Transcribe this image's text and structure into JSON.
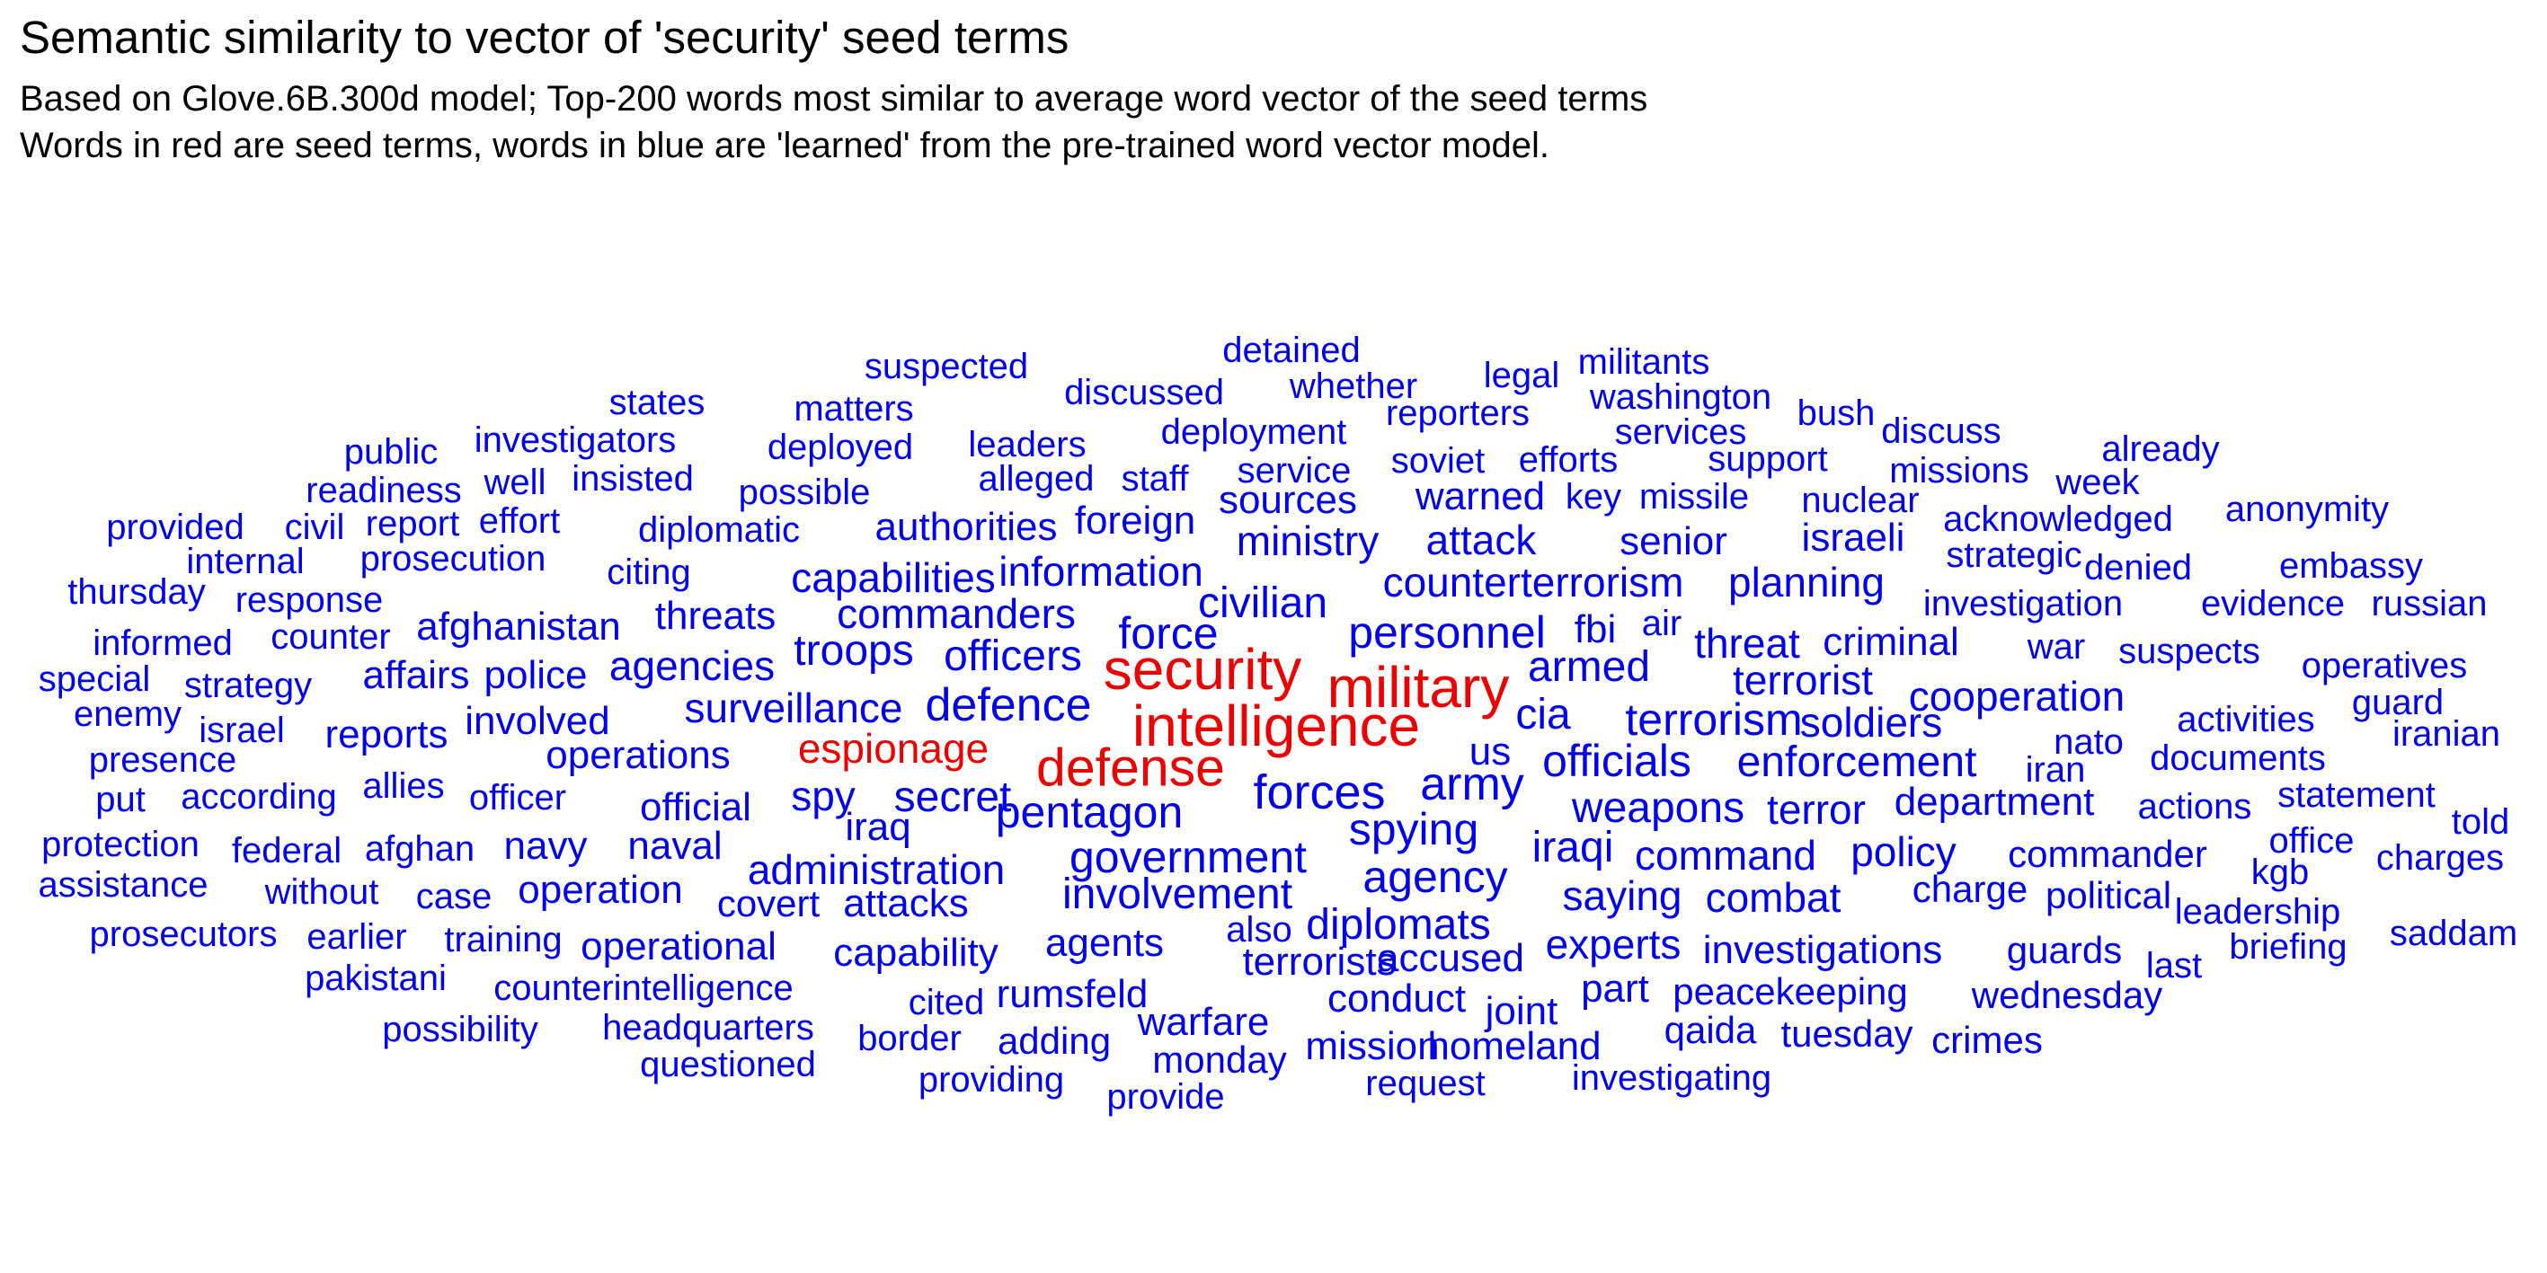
{
  "title": "Semantic similarity to vector of 'security' seed terms",
  "subtitle_lines": [
    "Based on Glove.6B.300d model; Top-200 words most similar to average word vector of the seed terms",
    "Words in red are seed terms, words in blue are 'learned' from the pre-trained word vector model."
  ],
  "colors": {
    "seed": "#ee0000",
    "learned": "#0000ee",
    "text": "#000000"
  },
  "words": [
    {
      "text": "security",
      "seed": true
    },
    {
      "text": "military",
      "seed": true
    },
    {
      "text": "intelligence",
      "seed": true
    },
    {
      "text": "defense",
      "seed": true
    },
    {
      "text": "espionage",
      "seed": true
    },
    {
      "text": "suspected"
    },
    {
      "text": "detained"
    },
    {
      "text": "legal"
    },
    {
      "text": "militants"
    },
    {
      "text": "states"
    },
    {
      "text": "matters"
    },
    {
      "text": "discussed"
    },
    {
      "text": "whether"
    },
    {
      "text": "reporters"
    },
    {
      "text": "washington"
    },
    {
      "text": "bush"
    },
    {
      "text": "public"
    },
    {
      "text": "investigators"
    },
    {
      "text": "deployed"
    },
    {
      "text": "leaders"
    },
    {
      "text": "deployment"
    },
    {
      "text": "services"
    },
    {
      "text": "discuss"
    },
    {
      "text": "readiness"
    },
    {
      "text": "well"
    },
    {
      "text": "insisted"
    },
    {
      "text": "possible"
    },
    {
      "text": "alleged"
    },
    {
      "text": "staff"
    },
    {
      "text": "service"
    },
    {
      "text": "soviet"
    },
    {
      "text": "efforts"
    },
    {
      "text": "support"
    },
    {
      "text": "missions"
    },
    {
      "text": "already"
    },
    {
      "text": "week"
    },
    {
      "text": "provided"
    },
    {
      "text": "civil"
    },
    {
      "text": "report"
    },
    {
      "text": "effort"
    },
    {
      "text": "diplomatic"
    },
    {
      "text": "authorities"
    },
    {
      "text": "foreign"
    },
    {
      "text": "sources"
    },
    {
      "text": "warned"
    },
    {
      "text": "key"
    },
    {
      "text": "missile"
    },
    {
      "text": "nuclear"
    },
    {
      "text": "acknowledged"
    },
    {
      "text": "anonymity"
    },
    {
      "text": "internal"
    },
    {
      "text": "prosecution"
    },
    {
      "text": "ministry"
    },
    {
      "text": "attack"
    },
    {
      "text": "senior"
    },
    {
      "text": "israeli"
    },
    {
      "text": "strategic"
    },
    {
      "text": "denied"
    },
    {
      "text": "embassy"
    },
    {
      "text": "thursday"
    },
    {
      "text": "response"
    },
    {
      "text": "citing"
    },
    {
      "text": "capabilities"
    },
    {
      "text": "information"
    },
    {
      "text": "counterterrorism"
    },
    {
      "text": "planning"
    },
    {
      "text": "informed"
    },
    {
      "text": "counter"
    },
    {
      "text": "afghanistan"
    },
    {
      "text": "threats"
    },
    {
      "text": "commanders"
    },
    {
      "text": "civilian"
    },
    {
      "text": "investigation"
    },
    {
      "text": "evidence"
    },
    {
      "text": "russian"
    },
    {
      "text": "force"
    },
    {
      "text": "personnel"
    },
    {
      "text": "fbi"
    },
    {
      "text": "air"
    },
    {
      "text": "threat"
    },
    {
      "text": "criminal"
    },
    {
      "text": "war"
    },
    {
      "text": "suspects"
    },
    {
      "text": "special"
    },
    {
      "text": "affairs"
    },
    {
      "text": "police"
    },
    {
      "text": "agencies"
    },
    {
      "text": "troops"
    },
    {
      "text": "officers"
    },
    {
      "text": "armed"
    },
    {
      "text": "terrorist"
    },
    {
      "text": "operatives"
    },
    {
      "text": "strategy"
    },
    {
      "text": "enemy"
    },
    {
      "text": "surveillance"
    },
    {
      "text": "defence"
    },
    {
      "text": "cia"
    },
    {
      "text": "terrorism"
    },
    {
      "text": "soldiers"
    },
    {
      "text": "cooperation"
    },
    {
      "text": "guard"
    },
    {
      "text": "israel"
    },
    {
      "text": "reports"
    },
    {
      "text": "involved"
    },
    {
      "text": "activities"
    },
    {
      "text": "nato"
    },
    {
      "text": "iranian"
    },
    {
      "text": "presence"
    },
    {
      "text": "operations"
    },
    {
      "text": "us"
    },
    {
      "text": "officials"
    },
    {
      "text": "enforcement"
    },
    {
      "text": "iran"
    },
    {
      "text": "documents"
    },
    {
      "text": "put"
    },
    {
      "text": "according"
    },
    {
      "text": "allies"
    },
    {
      "text": "officer"
    },
    {
      "text": "spy"
    },
    {
      "text": "secret"
    },
    {
      "text": "forces"
    },
    {
      "text": "army"
    },
    {
      "text": "statement"
    },
    {
      "text": "official"
    },
    {
      "text": "pentagon"
    },
    {
      "text": "weapons"
    },
    {
      "text": "terror"
    },
    {
      "text": "department"
    },
    {
      "text": "actions"
    },
    {
      "text": "told"
    },
    {
      "text": "protection"
    },
    {
      "text": "federal"
    },
    {
      "text": "afghan"
    },
    {
      "text": "navy"
    },
    {
      "text": "naval"
    },
    {
      "text": "iraq"
    },
    {
      "text": "spying"
    },
    {
      "text": "iraqi"
    },
    {
      "text": "office"
    },
    {
      "text": "administration"
    },
    {
      "text": "government"
    },
    {
      "text": "command"
    },
    {
      "text": "policy"
    },
    {
      "text": "commander"
    },
    {
      "text": "charges"
    },
    {
      "text": "kgb"
    },
    {
      "text": "assistance"
    },
    {
      "text": "without"
    },
    {
      "text": "case"
    },
    {
      "text": "operation"
    },
    {
      "text": "agency"
    },
    {
      "text": "covert"
    },
    {
      "text": "attacks"
    },
    {
      "text": "involvement"
    },
    {
      "text": "saying"
    },
    {
      "text": "combat"
    },
    {
      "text": "charge"
    },
    {
      "text": "political"
    },
    {
      "text": "leadership"
    },
    {
      "text": "prosecutors"
    },
    {
      "text": "earlier"
    },
    {
      "text": "training"
    },
    {
      "text": "operational"
    },
    {
      "text": "agents"
    },
    {
      "text": "also"
    },
    {
      "text": "diplomats"
    },
    {
      "text": "experts"
    },
    {
      "text": "investigations"
    },
    {
      "text": "guards"
    },
    {
      "text": "briefing"
    },
    {
      "text": "saddam"
    },
    {
      "text": "capability"
    },
    {
      "text": "terrorists"
    },
    {
      "text": "accused"
    },
    {
      "text": "last"
    },
    {
      "text": "pakistani"
    },
    {
      "text": "counterintelligence"
    },
    {
      "text": "cited"
    },
    {
      "text": "rumsfeld"
    },
    {
      "text": "conduct"
    },
    {
      "text": "part"
    },
    {
      "text": "joint"
    },
    {
      "text": "peacekeeping"
    },
    {
      "text": "wednesday"
    },
    {
      "text": "possibility"
    },
    {
      "text": "headquarters"
    },
    {
      "text": "warfare"
    },
    {
      "text": "border"
    },
    {
      "text": "adding"
    },
    {
      "text": "mission"
    },
    {
      "text": "homeland"
    },
    {
      "text": "qaida"
    },
    {
      "text": "tuesday"
    },
    {
      "text": "crimes"
    },
    {
      "text": "questioned"
    },
    {
      "text": "monday"
    },
    {
      "text": "providing"
    },
    {
      "text": "request"
    },
    {
      "text": "investigating"
    },
    {
      "text": "provide"
    }
  ]
}
